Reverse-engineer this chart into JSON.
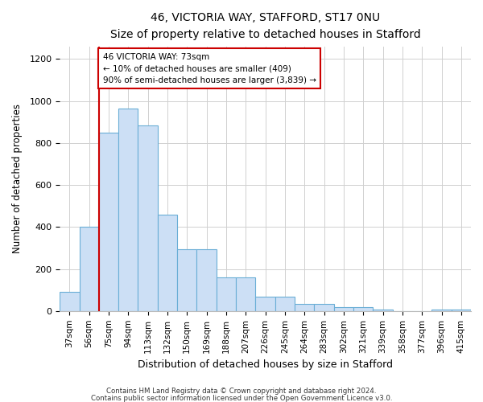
{
  "title": "46, VICTORIA WAY, STAFFORD, ST17 0NU",
  "subtitle": "Size of property relative to detached houses in Stafford",
  "xlabel": "Distribution of detached houses by size in Stafford",
  "ylabel": "Number of detached properties",
  "bar_labels": [
    "37sqm",
    "56sqm",
    "75sqm",
    "94sqm",
    "113sqm",
    "132sqm",
    "150sqm",
    "169sqm",
    "188sqm",
    "207sqm",
    "226sqm",
    "245sqm",
    "264sqm",
    "283sqm",
    "302sqm",
    "321sqm",
    "339sqm",
    "358sqm",
    "377sqm",
    "396sqm",
    "415sqm"
  ],
  "bar_values": [
    90,
    400,
    850,
    965,
    885,
    460,
    295,
    295,
    160,
    160,
    70,
    70,
    35,
    35,
    18,
    18,
    8,
    0,
    0,
    8,
    8
  ],
  "bar_color": "#ccdff5",
  "bar_edgecolor": "#6aaed6",
  "vline_color": "#cc0000",
  "annotation_title": "46 VICTORIA WAY: 73sqm",
  "annotation_line1": "← 10% of detached houses are smaller (409)",
  "annotation_line2": "90% of semi-detached houses are larger (3,839) →",
  "annotation_box_edgecolor": "#cc0000",
  "ylim": [
    0,
    1260
  ],
  "yticks": [
    0,
    200,
    400,
    600,
    800,
    1000,
    1200
  ],
  "footer1": "Contains HM Land Registry data © Crown copyright and database right 2024.",
  "footer2": "Contains public sector information licensed under the Open Government Licence v3.0.",
  "bg_color": "#ffffff",
  "grid_color": "#d0d0d0"
}
